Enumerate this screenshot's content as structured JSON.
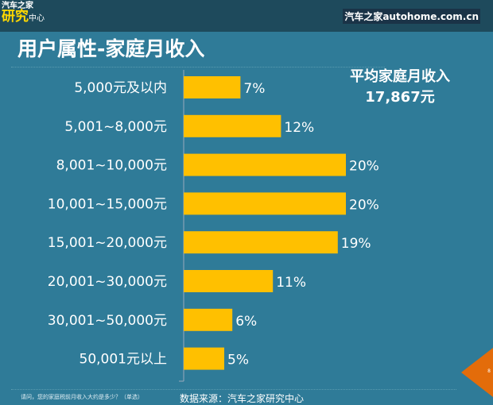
{
  "header": {
    "logo_top": "汽车之家",
    "logo_main": "研究",
    "logo_sub": "中心",
    "site": "汽车之家autohome.com.cn"
  },
  "title": "用户属性-家庭月收入",
  "average": {
    "label": "平均家庭月收入",
    "value": "17,867元"
  },
  "footer": {
    "question": "请问，您的家庭税前月收入大约是多少？（单选）",
    "source": "数据来源：汽车之家研究中心",
    "page": "8"
  },
  "colors": {
    "bar": "#ffc000",
    "background": "#2f7b98",
    "header": "#1e4a5c",
    "accent": "#e36c0a"
  },
  "chart_data": {
    "type": "bar",
    "orientation": "horizontal",
    "title": "用户属性-家庭月收入",
    "categories": [
      "5,000元及以内",
      "5,001~8,000元",
      "8,001~10,000元",
      "10,001~15,000元",
      "15,001~20,000元",
      "20,001~30,000元",
      "30,001~50,000元",
      "50,001元以上"
    ],
    "values": [
      7,
      12,
      20,
      20,
      19,
      11,
      6,
      5
    ],
    "labels": [
      "7%",
      "12%",
      "20%",
      "20%",
      "19%",
      "11%",
      "6%",
      "5%"
    ],
    "unit": "%",
    "xlim": [
      0,
      20
    ]
  }
}
